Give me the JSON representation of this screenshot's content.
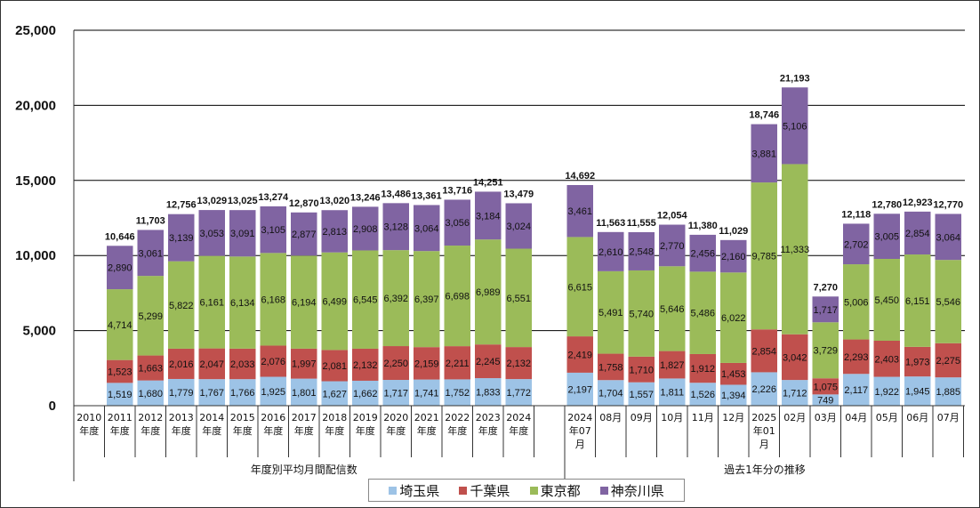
{
  "chart_data": {
    "type": "bar",
    "stacked": true,
    "ylim": [
      0,
      25000
    ],
    "yticks": [
      "0",
      "5,000",
      "10,000",
      "15,000",
      "20,000",
      "25,000"
    ],
    "ytick_values": [
      0,
      5000,
      10000,
      15000,
      20000,
      25000
    ],
    "grid": true,
    "legend_position": "bottom",
    "groups": [
      {
        "label": "年度別平均月間配信数",
        "categories": [
          [
            "2010",
            "年度"
          ],
          [
            "2011",
            "年度"
          ],
          [
            "2012",
            "年度"
          ],
          [
            "2013",
            "年度"
          ],
          [
            "2014",
            "年度"
          ],
          [
            "2015",
            "年度"
          ],
          [
            "2016",
            "年度"
          ],
          [
            "2017",
            "年度"
          ],
          [
            "2018",
            "年度"
          ],
          [
            "2019",
            "年度"
          ],
          [
            "2020",
            "年度"
          ],
          [
            "2021",
            "年度"
          ],
          [
            "2022",
            "年度"
          ],
          [
            "2023",
            "年度"
          ],
          [
            "2024",
            "年度"
          ]
        ],
        "values": {
          "saitama": [
            null,
            1519,
            1680,
            1779,
            1767,
            1766,
            1925,
            1801,
            1627,
            1662,
            1717,
            1741,
            1752,
            1833,
            1772
          ],
          "chiba": [
            null,
            1523,
            1663,
            2016,
            2047,
            2033,
            2076,
            1997,
            2081,
            2132,
            2250,
            2159,
            2211,
            2245,
            2132
          ],
          "tokyo": [
            null,
            4714,
            5299,
            5822,
            6161,
            6134,
            6168,
            6194,
            6499,
            6545,
            6392,
            6397,
            6698,
            6989,
            6551
          ],
          "kanagawa": [
            null,
            2890,
            3061,
            3139,
            3053,
            3091,
            3105,
            2877,
            2813,
            2908,
            3128,
            3064,
            3056,
            3184,
            3024
          ]
        },
        "totals": [
          null,
          10646,
          11703,
          12756,
          13029,
          13025,
          13274,
          12870,
          13020,
          13246,
          13486,
          13361,
          13716,
          14251,
          13479
        ]
      },
      {
        "label": "過去1年分の推移",
        "categories": [
          [
            "2024",
            "年07",
            "月"
          ],
          [
            "08月"
          ],
          [
            "09月"
          ],
          [
            "10月"
          ],
          [
            "11月"
          ],
          [
            "12月"
          ],
          [
            "2025",
            "年01",
            "月"
          ],
          [
            "02月"
          ],
          [
            "03月"
          ],
          [
            "04月"
          ],
          [
            "05月"
          ],
          [
            "06月"
          ],
          [
            "07月"
          ]
        ],
        "values": {
          "saitama": [
            2197,
            1704,
            1557,
            1811,
            1526,
            1394,
            2226,
            1712,
            749,
            2117,
            1922,
            1945,
            1885
          ],
          "chiba": [
            2419,
            1758,
            1710,
            1827,
            1912,
            1453,
            2854,
            3042,
            1075,
            2293,
            2403,
            1973,
            2275
          ],
          "tokyo": [
            6615,
            5491,
            5740,
            5646,
            5486,
            6022,
            9785,
            11333,
            3729,
            5006,
            5450,
            6151,
            5546
          ],
          "kanagawa": [
            3461,
            2610,
            2548,
            2770,
            2456,
            2160,
            3881,
            5106,
            1717,
            2702,
            3005,
            2854,
            3064
          ]
        },
        "totals": [
          14692,
          11563,
          11555,
          12054,
          11380,
          11029,
          18746,
          21193,
          7270,
          12118,
          12780,
          12923,
          12770
        ]
      }
    ],
    "series": [
      {
        "key": "saitama",
        "name": "埼玉県",
        "color": "#9DC3E6"
      },
      {
        "key": "chiba",
        "name": "千葉県",
        "color": "#C0504D"
      },
      {
        "key": "tokyo",
        "name": "東京都",
        "color": "#9BBB59"
      },
      {
        "key": "kanagawa",
        "name": "神奈川県",
        "color": "#8064A2"
      }
    ]
  }
}
